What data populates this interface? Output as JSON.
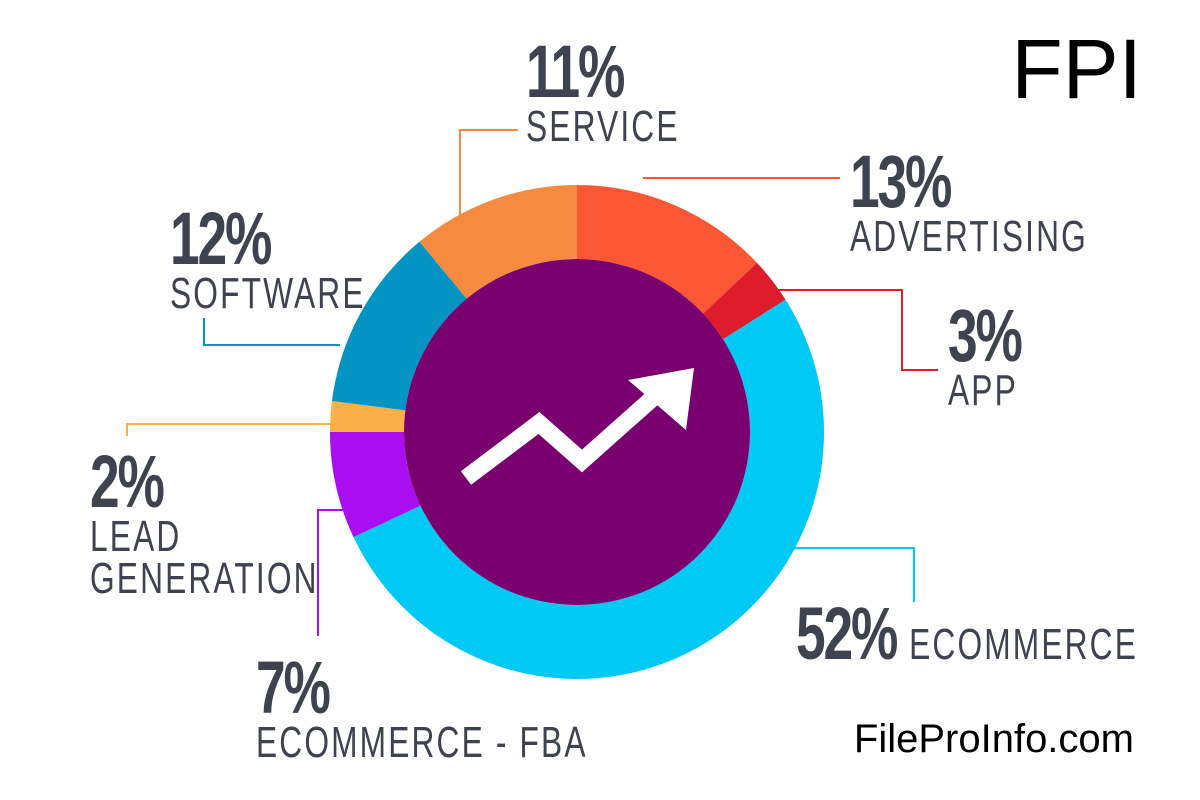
{
  "brand": {
    "logo_text": "FPI",
    "website": "FileProInfo.com"
  },
  "chart_data": {
    "type": "pie",
    "style": "donut",
    "title": "",
    "slices": [
      {
        "label": "ADVERTISING",
        "value": 13,
        "pct_label": "13%",
        "color": "#fc5735"
      },
      {
        "label": "APP",
        "value": 3,
        "pct_label": "3%",
        "color": "#de1c2b"
      },
      {
        "label": "ECOMMERCE",
        "value": 52,
        "pct_label": "52%",
        "color": "#00c9f5"
      },
      {
        "label": "ECOMMERCE - FBA",
        "value": 7,
        "pct_label": "7%",
        "color": "#a80ef0"
      },
      {
        "label": "LEAD GENERATION",
        "value": 2,
        "pct_label": "2%",
        "color": "#fbb04a"
      },
      {
        "label": "SOFTWARE",
        "value": 12,
        "pct_label": "12%",
        "color": "#0394c4"
      },
      {
        "label": "SERVICE",
        "value": 11,
        "pct_label": "11%",
        "color": "#f68b40"
      }
    ],
    "center_color": "#7a006f",
    "center_icon": "trend-up-arrow-icon"
  }
}
